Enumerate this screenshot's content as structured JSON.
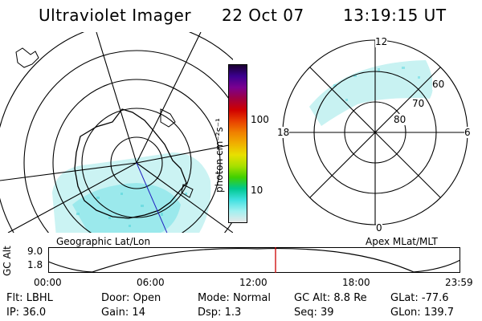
{
  "header": {
    "title": "Ultraviolet Imager",
    "date": "22 Oct 07",
    "time": "13:19:15 UT"
  },
  "geo_panel": {
    "label": "Geographic Lat/Lon"
  },
  "colorbar": {
    "unit_label": "photon cm⁻²s⁻¹",
    "ticks": [
      "100",
      "10"
    ],
    "colors": [
      "#1a0030",
      "#3c0090",
      "#7a0090",
      "#a00040",
      "#d00000",
      "#e84000",
      "#f08000",
      "#f0b000",
      "#e8e000",
      "#a8e000",
      "#40d000",
      "#00c890",
      "#40e0e0",
      "#a0f0f0",
      "#e8e8e8"
    ]
  },
  "mlt_panel": {
    "label": "Apex MLat/MLT",
    "lat_labels": [
      "60",
      "70",
      "80"
    ],
    "mlt_labels": {
      "top": "12",
      "left": "18",
      "right": "6",
      "bottom": "0"
    }
  },
  "altitude_plot": {
    "y_label": "GC Alt",
    "y_ticks": [
      "9.0",
      "1.8"
    ],
    "x_ticks": [
      "00:00",
      "06:00",
      "12:00",
      "18:00",
      "23:59"
    ],
    "marker_color": "#cc0000"
  },
  "info": {
    "row1": [
      {
        "label": "Flt:",
        "value": "LBHL"
      },
      {
        "label": "Door:",
        "value": "Open"
      },
      {
        "label": "Mode:",
        "value": "Normal"
      },
      {
        "label": "GC Alt:",
        "value": "8.8 Re"
      },
      {
        "label": "GLat:",
        "value": "-77.6"
      }
    ],
    "row2": [
      {
        "label": "IP:",
        "value": "36.0"
      },
      {
        "label": "Gain:",
        "value": "14"
      },
      {
        "label": "Dsp:",
        "value": "1.3"
      },
      {
        "label": "Seq:",
        "value": "39"
      },
      {
        "label": "GLon:",
        "value": "139.7"
      }
    ]
  }
}
